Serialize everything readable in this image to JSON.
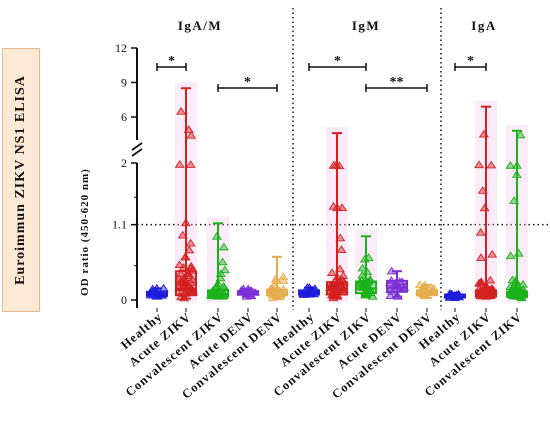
{
  "side_label": "Euroimmun ZIKV NS1 ELISA",
  "chart_data": {
    "type": "box",
    "ylabel": "OD ratio (450-620 nm)",
    "y_axis": {
      "ticks": [
        "0",
        "1.1",
        "2",
        "6",
        "9",
        "12"
      ],
      "tick_values": [
        0,
        1.1,
        2,
        6,
        9,
        12
      ],
      "broken": true,
      "segments": [
        [
          0,
          2
        ],
        [
          4,
          12
        ]
      ]
    },
    "threshold": 1.1,
    "panels": [
      {
        "title": "IgA/M",
        "groups": [
          {
            "label": "Healthy",
            "color": "#1d1ddb",
            "min": 0.02,
            "q1": 0.06,
            "median": 0.09,
            "q3": 0.12,
            "max": 0.17
          },
          {
            "label": "Acute ZIKV",
            "color": "#d42020",
            "min": 0.02,
            "q1": 0.07,
            "median": 0.16,
            "q3": 0.42,
            "max": 8.5
          },
          {
            "label": "Convalescent ZIKV",
            "color": "#19b319",
            "min": 0.02,
            "q1": 0.05,
            "median": 0.09,
            "q3": 0.14,
            "max": 1.12
          },
          {
            "label": "Acute DENV",
            "color": "#7b2fd4",
            "min": 0.05,
            "q1": 0.08,
            "median": 0.1,
            "q3": 0.13,
            "max": 0.16
          },
          {
            "label": "Convalescent DENV",
            "color": "#e6ad4e",
            "min": 0.02,
            "q1": 0.07,
            "median": 0.1,
            "q3": 0.15,
            "max": 0.63
          }
        ],
        "significance": [
          {
            "from": 0,
            "to": 1,
            "label": "*"
          },
          {
            "from": 2,
            "to": 4,
            "label": "*"
          }
        ]
      },
      {
        "title": "IgM",
        "groups": [
          {
            "label": "Healthy",
            "color": "#1d1ddb",
            "min": 0.05,
            "q1": 0.08,
            "median": 0.11,
            "q3": 0.14,
            "max": 0.18
          },
          {
            "label": "Acute ZIKV",
            "color": "#d42020",
            "min": 0.02,
            "q1": 0.08,
            "median": 0.15,
            "q3": 0.26,
            "max": 4.6
          },
          {
            "label": "Convalescent ZIKV",
            "color": "#19b319",
            "min": 0.05,
            "q1": 0.1,
            "median": 0.17,
            "q3": 0.27,
            "max": 0.93
          },
          {
            "label": "Acute DENV",
            "color": "#7b2fd4",
            "min": 0.05,
            "q1": 0.12,
            "median": 0.18,
            "q3": 0.28,
            "max": 0.42
          },
          {
            "label": "Convalescent DENV",
            "color": "#e6ad4e",
            "min": 0.03,
            "q1": 0.07,
            "median": 0.1,
            "q3": 0.14,
            "max": 0.22
          }
        ],
        "significance": [
          {
            "from": 0,
            "to": 2,
            "label": "*"
          },
          {
            "from": 2,
            "to": 4,
            "label": "**"
          }
        ]
      },
      {
        "title": "IgA",
        "groups": [
          {
            "label": "Healthy",
            "color": "#1d1ddb",
            "min": 0.02,
            "q1": 0.04,
            "median": 0.06,
            "q3": 0.08,
            "max": 0.1
          },
          {
            "label": "Acute ZIKV",
            "color": "#d42020",
            "min": 0.02,
            "q1": 0.05,
            "median": 0.08,
            "q3": 0.14,
            "max": 6.9
          },
          {
            "label": "Convalescent ZIKV",
            "color": "#19b319",
            "min": 0.02,
            "q1": 0.05,
            "median": 0.08,
            "q3": 0.12,
            "max": 4.8
          }
        ],
        "significance": [
          {
            "from": 0,
            "to": 1,
            "label": "*"
          }
        ]
      }
    ]
  }
}
